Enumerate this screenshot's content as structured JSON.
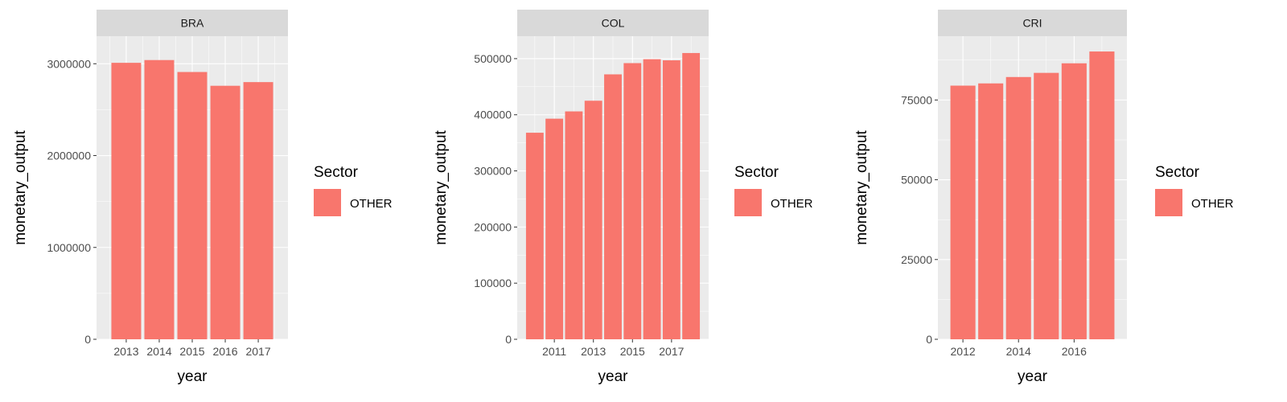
{
  "chart_data": [
    {
      "type": "bar",
      "title": "BRA",
      "xlabel": "year",
      "ylabel": "monetary_output",
      "categories": [
        2013,
        2014,
        2015,
        2016,
        2017
      ],
      "x_ticks": [
        "2013",
        "2014",
        "2015",
        "2016",
        "2017"
      ],
      "y_ticks": [
        "0",
        "1000000",
        "2000000",
        "3000000"
      ],
      "ylim": [
        0,
        3300000
      ],
      "series": [
        {
          "name": "OTHER",
          "values": [
            3010000,
            3040000,
            2910000,
            2760000,
            2800000
          ]
        }
      ],
      "legend": {
        "title": "Sector",
        "labels": [
          "OTHER"
        ],
        "placement": "right"
      },
      "grid": true
    },
    {
      "type": "bar",
      "title": "COL",
      "xlabel": "year",
      "ylabel": "monetary_output",
      "categories": [
        2010,
        2011,
        2012,
        2013,
        2014,
        2015,
        2016,
        2017,
        2018
      ],
      "x_ticks": [
        "2011",
        "2013",
        "2015",
        "2017"
      ],
      "y_ticks": [
        "0",
        "100000",
        "200000",
        "300000",
        "400000",
        "500000"
      ],
      "ylim": [
        0,
        540000
      ],
      "series": [
        {
          "name": "OTHER",
          "values": [
            368000,
            393000,
            406000,
            425000,
            472000,
            492000,
            499000,
            497000,
            510000
          ]
        }
      ],
      "legend": {
        "title": "Sector",
        "labels": [
          "OTHER"
        ],
        "placement": "right"
      },
      "grid": true
    },
    {
      "type": "bar",
      "title": "CRI",
      "xlabel": "year",
      "ylabel": "monetary_output",
      "categories": [
        2012,
        2013,
        2014,
        2015,
        2016,
        2017
      ],
      "x_ticks": [
        "2012",
        "2014",
        "2016"
      ],
      "y_ticks": [
        "0",
        "25000",
        "50000",
        "75000"
      ],
      "ylim": [
        0,
        95000
      ],
      "series": [
        {
          "name": "OTHER",
          "values": [
            79500,
            80200,
            82200,
            83500,
            86500,
            90200
          ]
        }
      ],
      "legend": {
        "title": "Sector",
        "labels": [
          "OTHER"
        ],
        "placement": "right"
      },
      "grid": true
    }
  ],
  "colors": {
    "bar": "#F8766D",
    "panel_bg": "#EBEBEB",
    "strip_bg": "#D9D9D9",
    "grid_major": "#FFFFFF",
    "tick_text": "#4D4D4D"
  }
}
